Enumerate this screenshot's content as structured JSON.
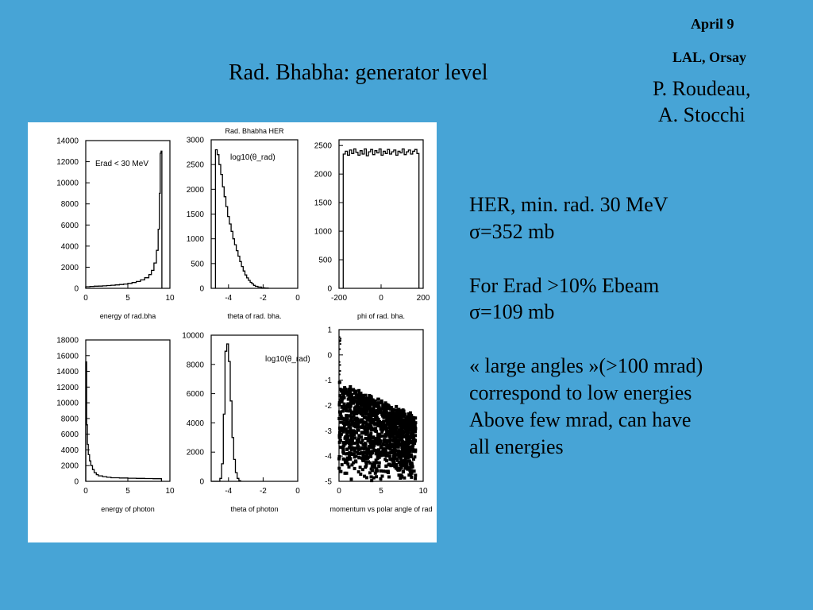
{
  "header": {
    "date": "April 9",
    "place": "LAL, Orsay",
    "authors": [
      "P. Roudeau,",
      "A. Stocchi"
    ]
  },
  "slide": {
    "title": "Rad. Bhabha: generator level"
  },
  "notes": [
    {
      "text": "HER, min. rad. 30 MeV"
    },
    {
      "text": "σ=352 mb"
    },
    {
      "text": "For Erad >10% Ebeam"
    },
    {
      "text": "σ=109 mb"
    },
    {
      "text": "« large angles »(>100 mrad)"
    },
    {
      "text": "correspond to low energies"
    },
    {
      "text": "Above few mrad, can have"
    },
    {
      "text": "all energies"
    }
  ],
  "chart_data": [
    {
      "type": "histogram",
      "title": "",
      "xlabel": "energy of rad.bha",
      "annotation": "Erad < 30 MeV",
      "xlim": [
        0,
        10
      ],
      "ylim": [
        0,
        14000
      ],
      "x_ticks": [
        "0",
        "5",
        "10"
      ],
      "y_ticks": [
        "0",
        "2000",
        "4000",
        "6000",
        "8000",
        "10000",
        "12000",
        "14000"
      ],
      "bins": [
        [
          0,
          150
        ],
        [
          0.5,
          180
        ],
        [
          1,
          200
        ],
        [
          1.5,
          210
        ],
        [
          2,
          230
        ],
        [
          2.5,
          260
        ],
        [
          3,
          290
        ],
        [
          3.5,
          320
        ],
        [
          4,
          360
        ],
        [
          4.5,
          410
        ],
        [
          5,
          470
        ],
        [
          5.5,
          550
        ],
        [
          6,
          650
        ],
        [
          6.5,
          800
        ],
        [
          7,
          1000
        ],
        [
          7.5,
          1300
        ],
        [
          7.8,
          1700
        ],
        [
          8.1,
          2400
        ],
        [
          8.4,
          3600
        ],
        [
          8.6,
          5600
        ],
        [
          8.75,
          9000
        ],
        [
          8.85,
          12800
        ],
        [
          8.95,
          13000
        ],
        [
          9.05,
          0
        ]
      ]
    },
    {
      "type": "histogram",
      "title": "Rad. Bhabha HER",
      "xlabel": "theta of rad. bha.",
      "annotation": "log10(θ_rad)",
      "xlim": [
        -5,
        0
      ],
      "ylim": [
        0,
        3000
      ],
      "x_ticks": [
        "-4",
        "-2",
        "0"
      ],
      "y_ticks": [
        "0",
        "500",
        "1000",
        "1500",
        "2000",
        "2500",
        "3000"
      ],
      "bins": [
        [
          -4.75,
          2800
        ],
        [
          -4.65,
          2700
        ],
        [
          -4.55,
          2500
        ],
        [
          -4.45,
          2300
        ],
        [
          -4.35,
          2050
        ],
        [
          -4.25,
          1850
        ],
        [
          -4.15,
          1650
        ],
        [
          -4.05,
          1450
        ],
        [
          -3.95,
          1300
        ],
        [
          -3.85,
          1150
        ],
        [
          -3.75,
          1000
        ],
        [
          -3.65,
          880
        ],
        [
          -3.55,
          760
        ],
        [
          -3.45,
          650
        ],
        [
          -3.35,
          540
        ],
        [
          -3.25,
          440
        ],
        [
          -3.15,
          350
        ],
        [
          -3.05,
          270
        ],
        [
          -2.95,
          210
        ],
        [
          -2.85,
          160
        ],
        [
          -2.75,
          120
        ],
        [
          -2.65,
          90
        ],
        [
          -2.55,
          60
        ],
        [
          -2.45,
          40
        ],
        [
          -2.3,
          25
        ],
        [
          -2.1,
          10
        ],
        [
          -1.9,
          5
        ],
        [
          -1.7,
          0
        ]
      ]
    },
    {
      "type": "histogram",
      "title": "",
      "xlabel": "phi of rad. bha.",
      "xlim": [
        -200,
        200
      ],
      "ylim": [
        0,
        2600
      ],
      "x_ticks": [
        "-200",
        "0",
        "200"
      ],
      "y_ticks": [
        "0",
        "500",
        "1000",
        "1500",
        "2000",
        "2500"
      ],
      "bins": [
        [
          -180,
          2350
        ],
        [
          -170,
          2400
        ],
        [
          -160,
          2330
        ],
        [
          -150,
          2420
        ],
        [
          -140,
          2360
        ],
        [
          -130,
          2440
        ],
        [
          -120,
          2380
        ],
        [
          -110,
          2330
        ],
        [
          -100,
          2410
        ],
        [
          -90,
          2350
        ],
        [
          -80,
          2440
        ],
        [
          -70,
          2320
        ],
        [
          -60,
          2390
        ],
        [
          -50,
          2430
        ],
        [
          -40,
          2340
        ],
        [
          -30,
          2410
        ],
        [
          -20,
          2370
        ],
        [
          -10,
          2440
        ],
        [
          0,
          2330
        ],
        [
          10,
          2400
        ],
        [
          20,
          2360
        ],
        [
          30,
          2430
        ],
        [
          40,
          2350
        ],
        [
          50,
          2390
        ],
        [
          60,
          2420
        ],
        [
          70,
          2330
        ],
        [
          80,
          2400
        ],
        [
          90,
          2370
        ],
        [
          100,
          2440
        ],
        [
          110,
          2340
        ],
        [
          120,
          2390
        ],
        [
          130,
          2420
        ],
        [
          140,
          2350
        ],
        [
          150,
          2400
        ],
        [
          160,
          2430
        ],
        [
          170,
          2360
        ],
        [
          180,
          0
        ]
      ]
    },
    {
      "type": "histogram",
      "title": "",
      "xlabel": "energy of photon",
      "xlim": [
        0,
        10
      ],
      "ylim": [
        0,
        18000
      ],
      "x_ticks": [
        "0",
        "5",
        "10"
      ],
      "y_ticks": [
        "0",
        "2000",
        "4000",
        "6000",
        "8000",
        "10000",
        "12000",
        "14000",
        "16000",
        "18000"
      ],
      "bins": [
        [
          0,
          15200
        ],
        [
          0.1,
          7200
        ],
        [
          0.2,
          4700
        ],
        [
          0.3,
          3400
        ],
        [
          0.45,
          2600
        ],
        [
          0.6,
          2000
        ],
        [
          0.8,
          1500
        ],
        [
          1,
          1100
        ],
        [
          1.25,
          850
        ],
        [
          1.5,
          700
        ],
        [
          2,
          600
        ],
        [
          2.5,
          520
        ],
        [
          3,
          460
        ],
        [
          4,
          420
        ],
        [
          5,
          390
        ],
        [
          6,
          370
        ],
        [
          7,
          350
        ],
        [
          8,
          330
        ],
        [
          9,
          0
        ]
      ]
    },
    {
      "type": "histogram",
      "title": "",
      "xlabel": "theta of photon",
      "annotation": "log10(θ_rad)",
      "xlim": [
        -5,
        0
      ],
      "ylim": [
        0,
        10000
      ],
      "x_ticks": [
        "-4",
        "-2",
        "0"
      ],
      "y_ticks": [
        "0",
        "2000",
        "4000",
        "6000",
        "8000",
        "10000"
      ],
      "bins": [
        [
          -5,
          0
        ],
        [
          -4.5,
          200
        ],
        [
          -4.4,
          1200
        ],
        [
          -4.3,
          4600
        ],
        [
          -4.2,
          8900
        ],
        [
          -4.1,
          9400
        ],
        [
          -4.0,
          8200
        ],
        [
          -3.9,
          5500
        ],
        [
          -3.8,
          3000
        ],
        [
          -3.7,
          1500
        ],
        [
          -3.6,
          600
        ],
        [
          -3.5,
          200
        ],
        [
          -3.4,
          50
        ],
        [
          -3.3,
          0
        ]
      ]
    },
    {
      "type": "scatter",
      "title": "",
      "xlabel": "momentum vs polar angle of rad",
      "xlim": [
        0,
        10
      ],
      "ylim": [
        -5,
        1
      ],
      "x_ticks": [
        "0",
        "5",
        "10"
      ],
      "y_ticks": [
        "-5",
        "-4",
        "-3",
        "-2",
        "-1",
        "0",
        "1"
      ],
      "description": "points concentrated at log10(theta) from -5 to about -1.5; upper edge falls from about -1 at low momentum to about -2.3 at high momentum; x range 0 to 9"
    }
  ]
}
